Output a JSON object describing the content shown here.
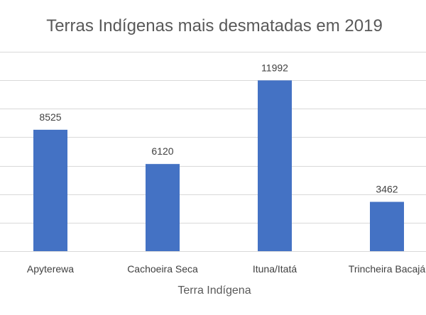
{
  "chart_data": {
    "type": "bar",
    "title": "Terras Indígenas mais desmatadas em 2019",
    "xlabel": "Terra Indígena",
    "ylabel": "",
    "categories": [
      "Apyterewa",
      "Cachoeira Seca",
      "Ituna/Itatá",
      "Trincheira Bacajá"
    ],
    "values": [
      8525,
      6120,
      11992,
      3462
    ],
    "data_labels": [
      "8525",
      "6120",
      "11992",
      "3462"
    ],
    "ylim": [
      0,
      14000
    ],
    "grid": true,
    "legend": "none",
    "colors": {
      "bar": "#4472C4",
      "grid": "#D9D9D9",
      "text": "#404040",
      "title": "#595959"
    }
  }
}
